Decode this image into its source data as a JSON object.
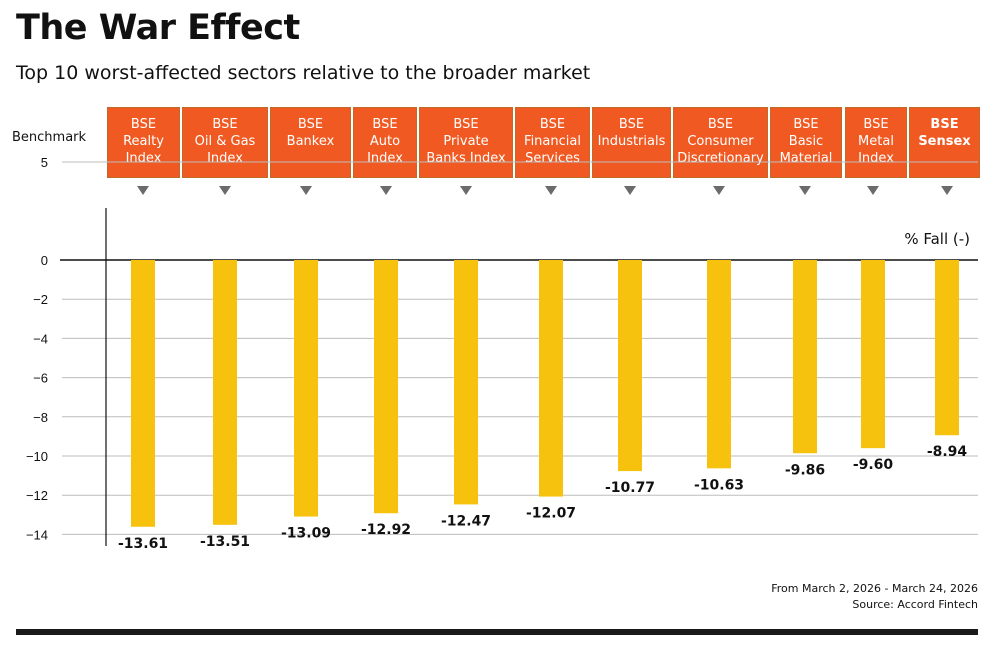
{
  "title": "The War Effect",
  "subtitle": "Top 10 worst-affected sectors relative to the broader market",
  "benchmark_label": "Benchmark",
  "footer": {
    "date_range": "From March 2, 2026 - March 24, 2026",
    "source": "Source: Accord Fintech"
  },
  "colors": {
    "header": "#f05a22",
    "bar": "#f7c20e",
    "title": "#111111"
  },
  "chart_data": {
    "type": "bar",
    "categories": [
      "BSE Realty Index",
      "BSE Oil & Gas Index",
      "BSE Bankex",
      "BSE Auto Index",
      "BSE Private Banks Index",
      "BSE Financial Services",
      "BSE Industrials",
      "BSE Consumer Discretionary",
      "BSE Basic Material",
      "BSE Metal Index",
      "BSE Sensex"
    ],
    "category_lines": [
      [
        "BSE",
        "Realty",
        "Index"
      ],
      [
        "BSE",
        "Oil & Gas",
        "Index"
      ],
      [
        "BSE",
        "Bankex"
      ],
      [
        "BSE",
        "Auto",
        "Index"
      ],
      [
        "BSE",
        "Private",
        "Banks Index"
      ],
      [
        "BSE",
        "Financial",
        "Services"
      ],
      [
        "BSE",
        "Industrials"
      ],
      [
        "BSE",
        "Consumer",
        "Discretionary"
      ],
      [
        "BSE",
        "Basic",
        "Material"
      ],
      [
        "BSE",
        "Metal",
        "Index"
      ],
      [
        "BSE",
        "Sensex"
      ]
    ],
    "values": [
      -13.61,
      -13.51,
      -13.09,
      -12.92,
      -12.47,
      -12.07,
      -10.77,
      -10.63,
      -9.86,
      -9.6,
      -8.94
    ],
    "data_labels": [
      "-13.61",
      "-13.51",
      "-13.09",
      "-12.92",
      "-12.47",
      "-12.07",
      "-10.77",
      "-10.63",
      "-9.86",
      "-9.60",
      "-8.94"
    ],
    "ylabel": "% Fall (-)",
    "ylim": [
      -14,
      5
    ],
    "yticks": [
      5,
      0,
      -2,
      -4,
      -6,
      -8,
      -10,
      -12,
      -14
    ],
    "grid": true,
    "benchmark_category": "BSE Sensex"
  }
}
